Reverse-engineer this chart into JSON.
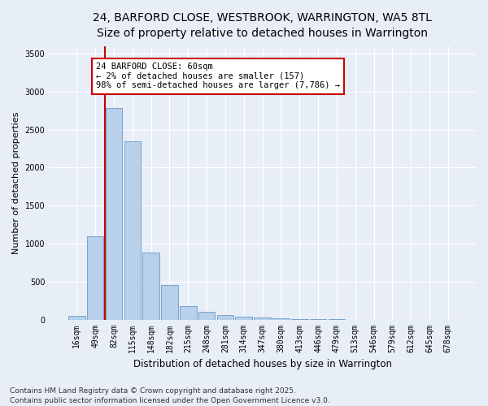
{
  "title_line1": "24, BARFORD CLOSE, WESTBROOK, WARRINGTON, WA5 8TL",
  "title_line2": "Size of property relative to detached houses in Warrington",
  "xlabel": "Distribution of detached houses by size in Warrington",
  "ylabel": "Number of detached properties",
  "categories": [
    "16sqm",
    "49sqm",
    "82sqm",
    "115sqm",
    "148sqm",
    "182sqm",
    "215sqm",
    "248sqm",
    "281sqm",
    "314sqm",
    "347sqm",
    "380sqm",
    "413sqm",
    "446sqm",
    "479sqm",
    "513sqm",
    "546sqm",
    "579sqm",
    "612sqm",
    "645sqm",
    "678sqm"
  ],
  "values": [
    50,
    1100,
    2780,
    2350,
    880,
    450,
    180,
    100,
    60,
    40,
    25,
    15,
    5,
    2,
    1,
    0,
    0,
    0,
    0,
    0,
    0
  ],
  "bar_color": "#b8d0ea",
  "bar_edge_color": "#6699cc",
  "annotation_text": "24 BARFORD CLOSE: 60sqm\n← 2% of detached houses are smaller (157)\n98% of semi-detached houses are larger (7,786) →",
  "annotation_box_color": "white",
  "annotation_box_edge_color": "#cc0000",
  "vline_color": "#cc0000",
  "ylim": [
    0,
    3600
  ],
  "yticks": [
    0,
    500,
    1000,
    1500,
    2000,
    2500,
    3000,
    3500
  ],
  "background_color": "#e8eef8",
  "grid_color": "#ffffff",
  "title_fontsize": 10,
  "subtitle_fontsize": 9,
  "tick_fontsize": 7,
  "ylabel_fontsize": 8,
  "xlabel_fontsize": 8.5,
  "annotation_fontsize": 7.5,
  "footer_fontsize": 6.5,
  "footer_line1": "Contains HM Land Registry data © Crown copyright and database right 2025.",
  "footer_line2": "Contains public sector information licensed under the Open Government Licence v3.0.",
  "vline_bar_index": 1,
  "vline_position": 1.5
}
